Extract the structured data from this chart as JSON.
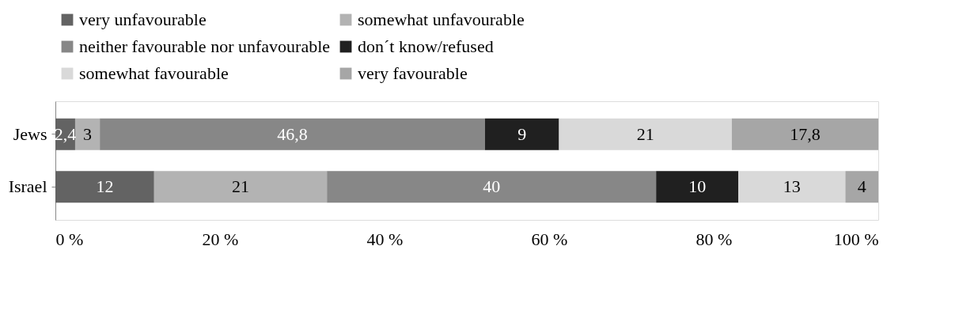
{
  "chart_data": {
    "type": "bar",
    "orientation": "horizontal",
    "stacked": true,
    "categories": [
      "Jews",
      "Israel"
    ],
    "series": [
      {
        "name": "very unfavourable",
        "color": "#636363",
        "values": [
          2.4,
          12
        ],
        "value_labels": [
          "2,4",
          "12"
        ]
      },
      {
        "name": "somewhat unfavourable",
        "color": "#b3b3b3",
        "values": [
          3,
          21
        ],
        "value_labels": [
          "3",
          "21"
        ]
      },
      {
        "name": "neither favourable nor unfavourable",
        "color": "#878787",
        "values": [
          46.8,
          40
        ],
        "value_labels": [
          "46,8",
          "40"
        ]
      },
      {
        "name": "don´t know/refused",
        "color": "#202020",
        "values": [
          9,
          10
        ],
        "value_labels": [
          "9",
          "10"
        ]
      },
      {
        "name": "somewhat favourable",
        "color": "#d9d9d9",
        "values": [
          21,
          13
        ],
        "value_labels": [
          "21",
          "13"
        ]
      },
      {
        "name": "very favourable",
        "color": "#a6a6a6",
        "values": [
          17.8,
          4
        ],
        "value_labels": [
          "17,8",
          "4"
        ]
      }
    ],
    "xlim": [
      0,
      100
    ],
    "xticks": [
      {
        "value": 0,
        "label": "0 %"
      },
      {
        "value": 20,
        "label": "20 %"
      },
      {
        "value": 40,
        "label": "40 %"
      },
      {
        "value": 60,
        "label": "60 %"
      },
      {
        "value": 80,
        "label": "80 %"
      },
      {
        "value": 100,
        "label": "100 %"
      }
    ],
    "grid": false,
    "legend": "top"
  }
}
